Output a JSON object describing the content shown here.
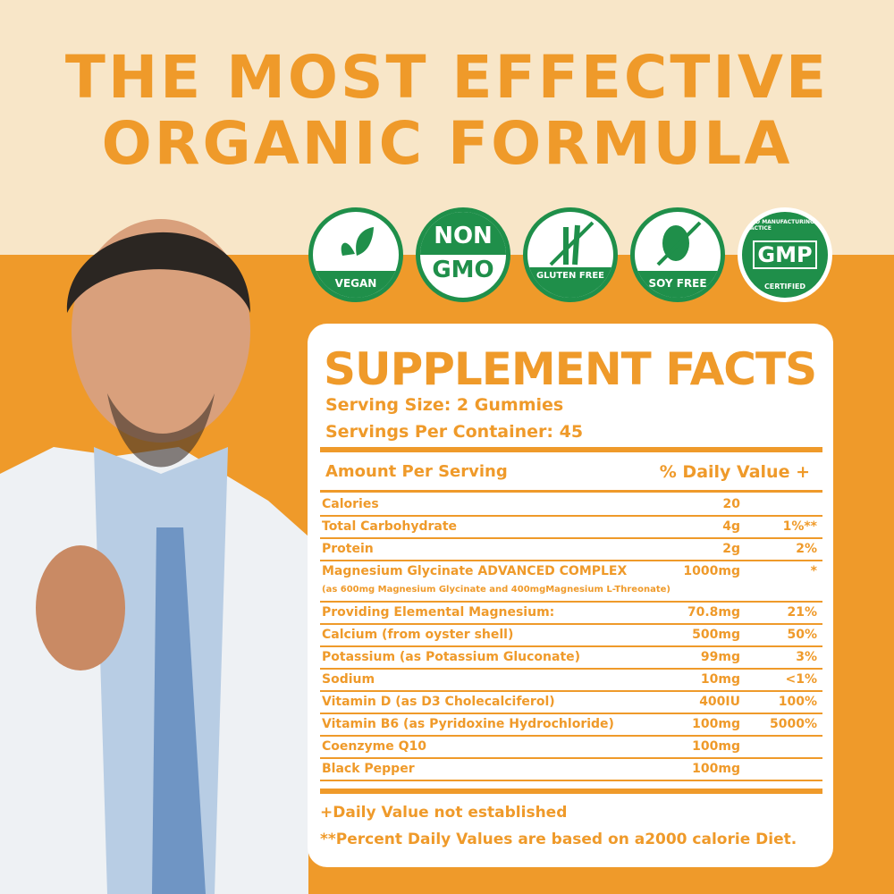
{
  "headline": {
    "line1": "THE MOST EFFECTIVE",
    "line2": "ORGANIC FORMULA"
  },
  "colors": {
    "orange": "#ef9a2a",
    "cream": "#f8e6c8",
    "green": "#1f8f4a"
  },
  "badges": [
    {
      "icon": "leaf-icon",
      "label": "VEGAN"
    },
    {
      "top": "NON",
      "bottom": "GMO"
    },
    {
      "icon": "wheat-crossed-icon",
      "label": "GLUTEN FREE"
    },
    {
      "icon": "soybean-crossed-icon",
      "label": "SOY FREE"
    },
    {
      "ring": "GOOD MANUFACTURING PRACTICE",
      "center": "GMP",
      "bottom": "CERTIFIED"
    }
  ],
  "facts": {
    "title": "SUPPLEMENT FACTS",
    "serving_size": "Serving Size: 2 Gummies",
    "servings_per_container": "Servings Per Container: 45",
    "col_amount": "Amount Per Serving",
    "col_dv": "% Daily Value +",
    "rows": [
      {
        "name": "Calories",
        "amount": "20",
        "dv": ""
      },
      {
        "name": "Total Carbohydrate",
        "amount": "4g",
        "dv": "1%**"
      },
      {
        "name": "Protein",
        "amount": "2g",
        "dv": "2%"
      },
      {
        "name": "Magnesium Glycinate ADVANCED COMPLEX",
        "amount": "1000mg",
        "dv": "*",
        "sub": "(as 600mg Magnesium Glycinate and 400mgMagnesium L-Threonate)"
      },
      {
        "name": "Providing Elemental Magnesium:",
        "amount": "70.8mg",
        "dv": "21%"
      },
      {
        "name": "Calcium (from oyster shell)",
        "amount": "500mg",
        "dv": "50%"
      },
      {
        "name": "Potassium (as Potassium Gluconate)",
        "amount": "99mg",
        "dv": "3%"
      },
      {
        "name": "Sodium",
        "amount": "10mg",
        "dv": "<1%"
      },
      {
        "name": "Vitamin D (as D3 Cholecalciferol)",
        "amount": "400IU",
        "dv": "100%"
      },
      {
        "name": "Vitamin B6 (as Pyridoxine Hydrochloride)",
        "amount": "100mg",
        "dv": "5000%"
      },
      {
        "name": "Coenzyme Q10",
        "amount": "100mg",
        "dv": ""
      },
      {
        "name": "Black Pepper",
        "amount": "100mg",
        "dv": ""
      }
    ],
    "footnote1": "+Daily Value not established",
    "footnote2": "**Percent Daily Values are based on a2000 calorie Diet."
  }
}
